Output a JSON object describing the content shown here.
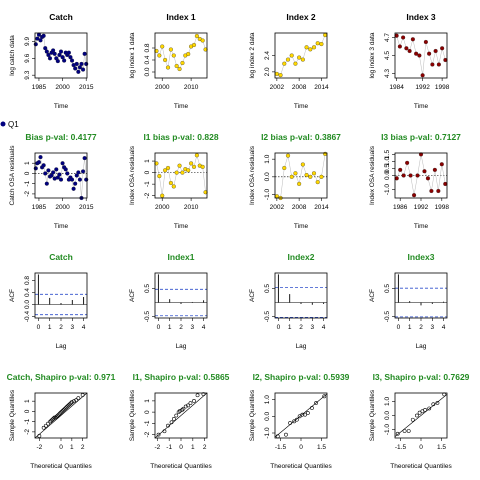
{
  "figure": {
    "legend": {
      "label": "Q1",
      "color": "#000080"
    },
    "rows": [
      {
        "title_color": "#000000"
      },
      {
        "title_color": "#228B22"
      },
      {
        "title_color": "#228B22"
      },
      {
        "title_color": "#228B22"
      }
    ]
  },
  "chart_data": [
    {
      "panel": "catch-series",
      "type": "scatter",
      "title": "Catch",
      "xlabel": "Time",
      "ylabel": "log catch data",
      "xlim": [
        1982.5,
        2015.5
      ],
      "ylim": [
        9.25,
        10.05
      ],
      "xticks": [
        1985,
        2000,
        2015
      ],
      "yticks": [
        9.3,
        9.6,
        9.9
      ],
      "ytick_labels": [
        "9.3",
        "9.6",
        "9.9"
      ],
      "point_color": "#000080",
      "x": [
        1983,
        1984,
        1985,
        1986,
        1987,
        1988,
        1989,
        1990,
        1991,
        1992,
        1993,
        1994,
        1995,
        1996,
        1997,
        1998,
        1999,
        2000,
        2001,
        2002,
        2003,
        2004,
        2005,
        2006,
        2007,
        2008,
        2009,
        2010,
        2011,
        2012,
        2013,
        2014,
        2015
      ],
      "y": [
        9.85,
        9.95,
        10.02,
        9.92,
        9.98,
        10.0,
        9.78,
        9.72,
        9.66,
        9.6,
        9.7,
        9.74,
        9.68,
        9.6,
        9.55,
        9.66,
        9.72,
        9.62,
        9.56,
        9.7,
        9.66,
        9.7,
        9.62,
        9.56,
        9.48,
        9.42,
        9.5,
        9.36,
        9.44,
        9.5,
        9.4,
        9.68,
        9.5
      ]
    },
    {
      "panel": "index1-series",
      "type": "scatter",
      "title": "Index 1",
      "xlabel": "Time",
      "ylabel": "log index 1 data",
      "xlim": [
        1997.5,
        2015.5
      ],
      "ylim": [
        -0.2,
        1.3
      ],
      "xticks": [
        2000,
        2010
      ],
      "yticks": [
        0.0,
        0.4,
        0.8
      ],
      "ytick_labels": [
        "0.0",
        "0.4",
        "0.8"
      ],
      "point_color": "#FFD700",
      "x": [
        1998,
        1999,
        2000,
        2001,
        2002,
        2003,
        2004,
        2005,
        2006,
        2007,
        2008,
        2009,
        2010,
        2011,
        2012,
        2013,
        2014,
        2015
      ],
      "y": [
        0.7,
        0.55,
        0.85,
        0.4,
        0.15,
        0.75,
        0.55,
        0.2,
        0.1,
        0.3,
        0.55,
        0.6,
        0.85,
        0.9,
        1.2,
        1.1,
        1.05,
        0.75
      ]
    },
    {
      "panel": "index2-series",
      "type": "scatter",
      "title": "Index 2",
      "xlabel": "Time",
      "ylabel": "log index 2 data",
      "xlim": [
        2001.5,
        2015.5
      ],
      "ylim": [
        1.85,
        2.95
      ],
      "xticks": [
        2002,
        2008,
        2014
      ],
      "yticks": [
        2.0,
        2.4
      ],
      "ytick_labels": [
        "2.0",
        "2.4"
      ],
      "point_color": "#FFD700",
      "x": [
        2002,
        2003,
        2004,
        2005,
        2006,
        2007,
        2008,
        2009,
        2010,
        2011,
        2012,
        2013,
        2014,
        2015
      ],
      "y": [
        1.95,
        1.92,
        2.2,
        2.3,
        2.4,
        2.2,
        2.35,
        2.3,
        2.6,
        2.55,
        2.6,
        2.7,
        2.68,
        2.9
      ]
    },
    {
      "panel": "index3-series",
      "type": "scatter",
      "title": "Index 3",
      "xlabel": "Time",
      "ylabel": "log index 3 data",
      "xlim": [
        1983.5,
        1999.5
      ],
      "ylim": [
        4.25,
        4.75
      ],
      "xticks": [
        1984,
        1992,
        1998
      ],
      "yticks": [
        4.3,
        4.5,
        4.7
      ],
      "ytick_labels": [
        "4.3",
        "4.5",
        "4.7"
      ],
      "point_color": "#8B0000",
      "x": [
        1984,
        1985,
        1986,
        1987,
        1988,
        1989,
        1990,
        1991,
        1992,
        1993,
        1994,
        1995,
        1996,
        1997,
        1998,
        1999
      ],
      "y": [
        4.72,
        4.6,
        4.7,
        4.58,
        4.55,
        4.68,
        4.52,
        4.5,
        4.28,
        4.65,
        4.52,
        4.4,
        4.55,
        4.4,
        4.58,
        4.45
      ]
    },
    {
      "panel": "catch-residuals",
      "type": "scatter",
      "title": "Bias p-val: 0.4177",
      "xlabel": "Time",
      "ylabel": "Catch OSA residuals",
      "xlim": [
        1982.5,
        2015.5
      ],
      "ylim": [
        -2.4,
        2.0
      ],
      "xticks": [
        1985,
        2000,
        2015
      ],
      "yticks": [
        -2,
        -1,
        0,
        1
      ],
      "ytick_labels": [
        "-2",
        "-1",
        "0",
        "1"
      ],
      "point_color": "#000080",
      "zero_line": true,
      "x": [
        1983,
        1984,
        1985,
        1986,
        1987,
        1988,
        1989,
        1990,
        1991,
        1992,
        1993,
        1994,
        1995,
        1996,
        1997,
        1998,
        1999,
        2000,
        2001,
        2002,
        2003,
        2004,
        2005,
        2006,
        2007,
        2008,
        2009,
        2010,
        2011,
        2012,
        2013,
        2014,
        2015
      ],
      "y": [
        0.5,
        1.0,
        1.1,
        1.6,
        0.6,
        0.8,
        0.0,
        -1.0,
        0.3,
        -0.3,
        -0.2,
        0.1,
        -0.5,
        0.4,
        -0.4,
        -0.1,
        -0.6,
        1.0,
        0.6,
        0.4,
        0.0,
        -0.6,
        -0.4,
        -0.6,
        -1.5,
        -1.0,
        -0.2,
        0.1,
        -0.6,
        -2.4,
        0.2,
        1.5,
        -0.6
      ]
    },
    {
      "panel": "index1-residuals",
      "type": "scatter",
      "title": "I1 bias p-val: 0.828",
      "xlabel": "Time",
      "ylabel": "Index OSA residuals",
      "xlim": [
        1997.5,
        2015.5
      ],
      "ylim": [
        -2.2,
        1.7
      ],
      "xticks": [
        2000,
        2010
      ],
      "yticks": [
        -2,
        -1,
        0,
        1
      ],
      "ytick_labels": [
        "-2",
        "-1",
        "0",
        "1"
      ],
      "point_color": "#FFD700",
      "zero_line": true,
      "x": [
        1998,
        1999,
        2000,
        2001,
        2002,
        2003,
        2004,
        2005,
        2006,
        2007,
        2008,
        2009,
        2010,
        2011,
        2012,
        2013,
        2014,
        2015
      ],
      "y": [
        0.8,
        -0.3,
        -2.0,
        0.2,
        0.4,
        -0.9,
        -1.2,
        0.0,
        0.6,
        0.0,
        0.3,
        0.2,
        0.8,
        0.5,
        1.5,
        0.6,
        0.5,
        -1.7
      ]
    },
    {
      "panel": "index2-residuals",
      "type": "scatter",
      "title": "I2 bias p-val: 0.3867",
      "xlabel": "Time",
      "ylabel": "Index OSA residuals",
      "xlim": [
        2001.5,
        2015.5
      ],
      "ylim": [
        -1.2,
        1.35
      ],
      "xticks": [
        2002,
        2008,
        2014
      ],
      "yticks": [
        -1.0,
        0.0,
        1.0
      ],
      "ytick_labels": [
        "-1.0",
        "0.0",
        "1.0"
      ],
      "point_color": "#FFD700",
      "zero_line": true,
      "x": [
        2002,
        2003,
        2004,
        2005,
        2006,
        2007,
        2008,
        2009,
        2010,
        2011,
        2012,
        2013,
        2014,
        2015
      ],
      "y": [
        -1.1,
        -1.2,
        0.5,
        1.2,
        0.0,
        0.2,
        -0.4,
        0.7,
        0.1,
        0.0,
        0.2,
        -0.3,
        0.0,
        1.3
      ]
    },
    {
      "panel": "index3-residuals",
      "type": "scatter",
      "title": "I3 bias p-val: 0.7127",
      "xlabel": "Time",
      "ylabel": "Index OSA residuals",
      "xlim": [
        1984.5,
        1999.5
      ],
      "ylim": [
        -1.6,
        1.6
      ],
      "xticks": [
        1986,
        1992,
        1998
      ],
      "yticks": [
        -1.0,
        0.0,
        0.5,
        1.0,
        1.5
      ],
      "ytick_labels": [
        "-1.0",
        "0.0",
        "0.5",
        "1.0",
        "1.5"
      ],
      "point_color": "#8B0000",
      "zero_line": true,
      "x": [
        1985,
        1986,
        1987,
        1988,
        1989,
        1990,
        1991,
        1992,
        1993,
        1994,
        1995,
        1996,
        1997,
        1998,
        1999
      ],
      "y": [
        -0.2,
        0.4,
        0.0,
        0.9,
        0.0,
        -1.4,
        0.0,
        1.5,
        0.3,
        -0.2,
        -1.1,
        0.4,
        -1.1,
        0.8,
        -0.6
      ]
    },
    {
      "panel": "catch-acf",
      "type": "bar",
      "title": "Catch",
      "xlabel": "Lag",
      "ylabel": "ACF",
      "xlim": [
        -0.3,
        4.3
      ],
      "ylim": [
        -0.45,
        1.05
      ],
      "xticks": [
        0,
        1,
        2,
        3,
        4
      ],
      "yticks": [
        -0.4,
        0.0,
        0.4,
        0.8
      ],
      "ytick_labels": [
        "-0.4",
        "0.0",
        "0.4",
        "0.8"
      ],
      "lag": [
        0,
        1,
        2,
        3,
        4
      ],
      "acf": [
        1.0,
        0.22,
        0.05,
        0.15,
        0.25
      ],
      "conf": 0.34,
      "conf_color": "#2F4FCC"
    },
    {
      "panel": "index1-acf",
      "type": "bar",
      "title": "Index1",
      "xlabel": "Lag",
      "ylabel": "ACF",
      "xlim": [
        -0.3,
        4.3
      ],
      "ylim": [
        -0.55,
        1.05
      ],
      "xticks": [
        0,
        1,
        2,
        3,
        4
      ],
      "yticks": [
        -0.5,
        0.5
      ],
      "ytick_labels": [
        "-0.5",
        "0.5"
      ],
      "lag": [
        0,
        1,
        2,
        3,
        4
      ],
      "acf": [
        1.0,
        0.12,
        -0.05,
        0.02,
        0.08
      ],
      "conf": 0.47,
      "conf_color": "#2F4FCC"
    },
    {
      "panel": "index2-acf",
      "type": "bar",
      "title": "Index2",
      "xlabel": "Lag",
      "ylabel": "ACF",
      "xlim": [
        -0.3,
        4.3
      ],
      "ylim": [
        -0.55,
        1.05
      ],
      "xticks": [
        0,
        1,
        2,
        3,
        4
      ],
      "yticks": [
        -0.5,
        0.5
      ],
      "ytick_labels": [
        "-0.5",
        "0.5"
      ],
      "lag": [
        0,
        1,
        2,
        3,
        4
      ],
      "acf": [
        1.0,
        0.3,
        -0.05,
        -0.08,
        -0.05
      ],
      "conf": 0.53,
      "conf_color": "#2F4FCC"
    },
    {
      "panel": "index3-acf",
      "type": "bar",
      "title": "Index3",
      "xlabel": "Lag",
      "ylabel": "ACF",
      "xlim": [
        -0.3,
        4.3
      ],
      "ylim": [
        -0.55,
        1.05
      ],
      "xticks": [
        0,
        1,
        2,
        3,
        4
      ],
      "yticks": [
        -0.5,
        0.5
      ],
      "ytick_labels": [
        "-0.5",
        "0.5"
      ],
      "lag": [
        0,
        1,
        2,
        3,
        4
      ],
      "acf": [
        1.0,
        0.05,
        -0.1,
        -0.05,
        0.03
      ],
      "conf": 0.51,
      "conf_color": "#2F4FCC"
    },
    {
      "panel": "catch-qq",
      "type": "scatter",
      "title": "Catch, Shapiro p-val: 0.971",
      "xlabel": "Theoretical Quantiles",
      "ylabel": "Sample Quantiles",
      "xlim": [
        -2.4,
        2.4
      ],
      "ylim": [
        -2.6,
        1.8
      ],
      "xticks": [
        -2,
        0,
        1,
        2
      ],
      "yticks": [
        -2,
        -1,
        0,
        1
      ],
      "ytick_labels": [
        "-2",
        "-1",
        "0",
        "1"
      ],
      "point_color": "#000000",
      "point_style": "open",
      "qq_line": [
        [
          -2.4,
          -2.6
        ],
        [
          2.4,
          1.8
        ]
      ],
      "x": [
        -2.0,
        -1.6,
        -1.4,
        -1.2,
        -1.0,
        -0.9,
        -0.8,
        -0.7,
        -0.6,
        -0.5,
        -0.4,
        -0.3,
        -0.2,
        -0.1,
        0.0,
        0.1,
        0.2,
        0.3,
        0.4,
        0.5,
        0.6,
        0.7,
        0.8,
        0.9,
        1.0,
        1.2,
        1.4,
        1.6,
        2.0
      ],
      "y": [
        -2.4,
        -1.6,
        -1.4,
        -1.2,
        -1.0,
        -0.9,
        -0.8,
        -0.7,
        -0.6,
        -0.6,
        -0.5,
        -0.4,
        -0.3,
        -0.2,
        -0.1,
        0.0,
        0.1,
        0.2,
        0.3,
        0.4,
        0.5,
        0.6,
        0.7,
        0.8,
        0.9,
        1.0,
        1.1,
        1.3,
        1.6
      ]
    },
    {
      "panel": "index1-qq",
      "type": "scatter",
      "title": "I1, Shapiro p-val: 0.5865",
      "xlabel": "Theoretical Quantiles",
      "ylabel": "Sample Quantiles",
      "xlim": [
        -2.2,
        2.2
      ],
      "ylim": [
        -2.3,
        1.7
      ],
      "xticks": [
        -2,
        -1,
        0,
        1,
        2
      ],
      "yticks": [
        -2,
        -1,
        0,
        1
      ],
      "ytick_labels": [
        "-2",
        "-1",
        "0",
        "1"
      ],
      "point_color": "#000000",
      "point_style": "open",
      "qq_line": [
        [
          -2.2,
          -2.3
        ],
        [
          2.2,
          1.7
        ]
      ],
      "x": [
        -1.9,
        -1.4,
        -1.1,
        -0.8,
        -0.6,
        -0.4,
        -0.2,
        -0.1,
        0.1,
        0.2,
        0.4,
        0.6,
        0.8,
        1.1,
        1.4,
        1.9
      ],
      "y": [
        -2.0,
        -1.7,
        -1.2,
        -0.9,
        -0.6,
        -0.3,
        0.0,
        0.1,
        0.2,
        0.3,
        0.5,
        0.6,
        0.8,
        1.0,
        1.5,
        1.6
      ]
    },
    {
      "panel": "index2-qq",
      "type": "scatter",
      "title": "I2, Shapiro p-val: 0.5939",
      "xlabel": "Theoretical Quantiles",
      "ylabel": "Sample Quantiles",
      "xlim": [
        -1.9,
        1.9
      ],
      "ylim": [
        -1.3,
        1.4
      ],
      "xticks": [
        -1.5,
        0.0,
        1.5
      ],
      "yticks": [
        -1.0,
        0.0,
        1.0
      ],
      "ytick_labels": [
        "-1.0",
        "0.0",
        "1.0"
      ],
      "point_color": "#000000",
      "point_style": "open",
      "qq_line": [
        [
          -1.9,
          -1.25
        ],
        [
          1.9,
          1.35
        ]
      ],
      "x": [
        -1.7,
        -1.1,
        -0.8,
        -0.5,
        -0.3,
        -0.1,
        0.1,
        0.3,
        0.5,
        0.8,
        1.1,
        1.7
      ],
      "y": [
        -1.2,
        -1.1,
        -0.4,
        -0.3,
        -0.2,
        0.0,
        0.1,
        0.1,
        0.2,
        0.5,
        0.8,
        1.2
      ]
    },
    {
      "panel": "index3-qq",
      "type": "scatter",
      "title": "I3, Shapiro p-val: 0.7629",
      "xlabel": "Theoretical Quantiles",
      "ylabel": "Sample Quantiles",
      "xlim": [
        -1.9,
        1.9
      ],
      "ylim": [
        -1.6,
        1.6
      ],
      "xticks": [
        -1.5,
        0.0,
        1.5
      ],
      "yticks": [
        -1.0,
        0.0,
        1.0
      ],
      "ytick_labels": [
        "-1.0",
        "0.0",
        "1.0"
      ],
      "point_color": "#000000",
      "point_style": "open",
      "qq_line": [
        [
          -1.9,
          -1.5
        ],
        [
          1.9,
          1.5
        ]
      ],
      "x": [
        -1.7,
        -1.2,
        -0.9,
        -0.6,
        -0.3,
        -0.1,
        0.1,
        0.3,
        0.6,
        0.9,
        1.2,
        1.7
      ],
      "y": [
        -1.3,
        -1.1,
        -1.1,
        -0.3,
        0.0,
        0.2,
        0.3,
        0.4,
        0.5,
        0.8,
        0.9,
        1.5
      ]
    }
  ]
}
